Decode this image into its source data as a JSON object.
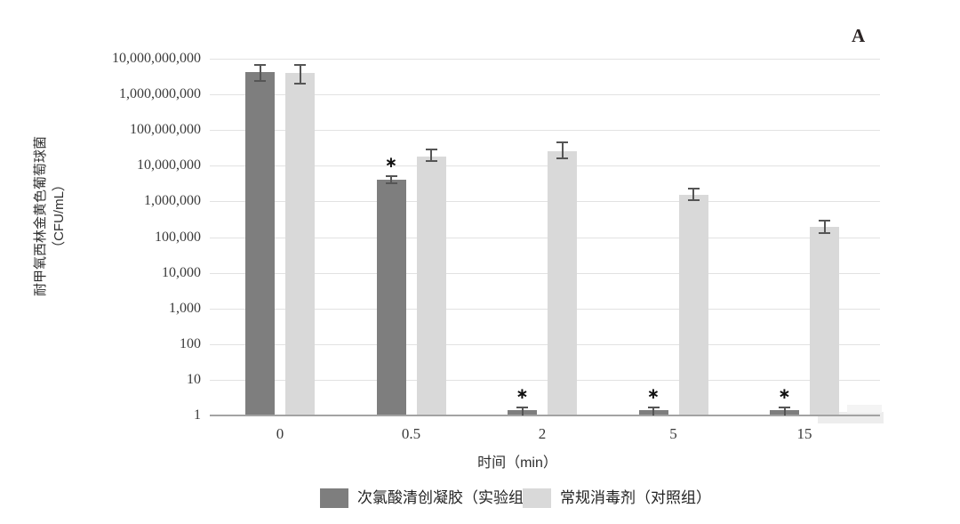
{
  "figure": {
    "panel_label": "A",
    "y_axis_title_line1": "耐甲氧西林金黄色葡萄球菌",
    "y_axis_title_line2": "（CFU/mL）",
    "x_axis_title": "时间（min）"
  },
  "chart_data": {
    "type": "bar",
    "scale": "log",
    "title": "",
    "xlabel": "时间（min）",
    "ylabel": "耐甲氧西林金黄色葡萄球菌（CFU/mL）",
    "ylim": [
      1,
      10000000000
    ],
    "grid": true,
    "legend_position": "bottom",
    "categories": [
      "0",
      "0.5",
      "2",
      "5",
      "15"
    ],
    "ytick_labels": [
      "10,000,000,000",
      "1,000,000,000",
      "100,000,000",
      "10,000,000",
      "1,000,000",
      "100,000",
      "10,000",
      "1,000",
      "100",
      "10",
      "1"
    ],
    "significance_marker": "∗",
    "series": [
      {
        "name": "次氯酸清创凝胶（实验组）",
        "color": "#7e7e7e",
        "values": [
          4200000000,
          4100000,
          1.4,
          1.4,
          1.4
        ],
        "err_hi": [
          7000000000,
          5400000,
          1.8,
          1.8,
          1.8
        ],
        "err_lo": [
          2200000000,
          3000000,
          1.0,
          1.0,
          1.0
        ],
        "significant": [
          false,
          true,
          true,
          true,
          true
        ]
      },
      {
        "name": "常规消毒剂（对照组）",
        "color": "#d9d9d9",
        "values": [
          4100000000,
          18000000,
          26000000,
          1500000,
          190000
        ],
        "err_hi": [
          7200000000,
          30000000,
          48000000,
          2400000,
          300000
        ],
        "err_lo": [
          1900000000,
          12500000,
          15000000,
          1000000,
          120000
        ],
        "significant": [
          false,
          false,
          false,
          false,
          false
        ]
      }
    ]
  }
}
